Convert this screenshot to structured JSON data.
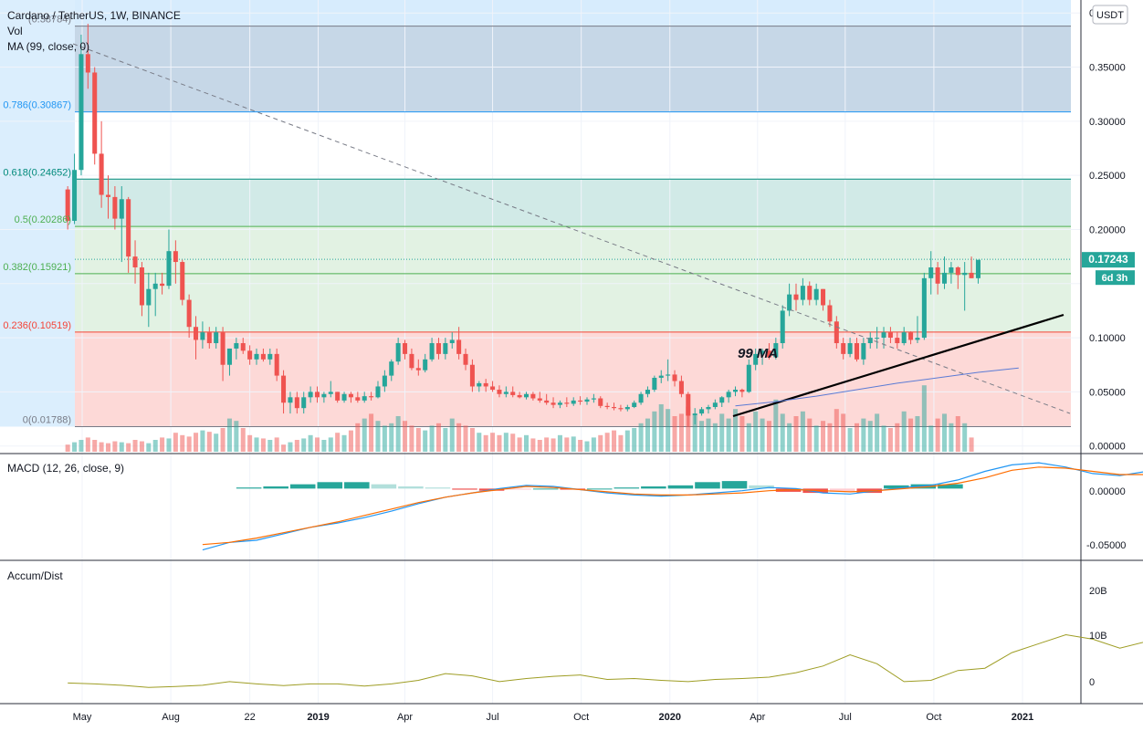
{
  "header": {
    "symbol_title": "Cardano / TetherUS, 1W, BINANCE",
    "vol_label": "Vol",
    "ma_label": "MA (99, close, 0)",
    "currency_button": "USDT"
  },
  "price_axis": {
    "ticks": [
      "0.40000",
      "0.35000",
      "0.30000",
      "0.25000",
      "0.20000",
      "0.15000",
      "0.10000",
      "0.05000",
      "0.00000"
    ],
    "last_price": "0.17243",
    "countdown": "6d 3h"
  },
  "fib_levels": [
    {
      "label": "(0.38784)",
      "value": 0.38784,
      "color": "#787b86"
    },
    {
      "label": "0.786(0.30867)",
      "value": 0.30867,
      "color": "#2196f3"
    },
    {
      "label": "0.618(0.24652)",
      "value": 0.24652,
      "color": "#00897b"
    },
    {
      "label": "0.5(0.20286)",
      "value": 0.20286,
      "color": "#4caf50"
    },
    {
      "label": "0.382(0.15921)",
      "value": 0.15921,
      "color": "#4caf50"
    },
    {
      "label": "0.236(0.10519)",
      "value": 0.10519,
      "color": "#f44336"
    },
    {
      "label": "0(0.01788)",
      "value": 0.01788,
      "color": "#787b86"
    }
  ],
  "annotation": {
    "ma_text": "99 MA"
  },
  "macd": {
    "title": "MACD (12, 26, close, 9)",
    "ticks": [
      "0.00000",
      "-0.05000"
    ]
  },
  "accum": {
    "title": "Accum/Dist",
    "ticks": [
      "20B",
      "10B",
      "0"
    ]
  },
  "time_axis": {
    "labels": [
      "May",
      "Aug",
      "22",
      "2019",
      "Apr",
      "Jul",
      "Oct",
      "2020",
      "Apr",
      "Jul",
      "Oct",
      "2021"
    ]
  },
  "colors": {
    "up": "#26a69a",
    "down": "#ef5350",
    "macd": "#2196f3",
    "signal": "#ff6d00",
    "ad": "#9e9d24"
  },
  "chart_data": [
    {
      "type": "candlestick",
      "title": "Cardano / TetherUS, 1W, BINANCE",
      "ylim": [
        -0.007,
        0.412
      ],
      "x_start": "2018-04-16",
      "x_step_weeks": 1,
      "ohlc": [
        [
          0.237,
          0.24,
          0.2,
          0.208
        ],
        [
          0.208,
          0.27,
          0.205,
          0.255
        ],
        [
          0.255,
          0.38,
          0.25,
          0.362
        ],
        [
          0.362,
          0.39,
          0.33,
          0.345
        ],
        [
          0.345,
          0.35,
          0.26,
          0.27
        ],
        [
          0.27,
          0.3,
          0.22,
          0.232
        ],
        [
          0.232,
          0.25,
          0.21,
          0.23
        ],
        [
          0.23,
          0.24,
          0.2,
          0.21
        ],
        [
          0.21,
          0.24,
          0.17,
          0.228
        ],
        [
          0.228,
          0.23,
          0.16,
          0.175
        ],
        [
          0.175,
          0.19,
          0.15,
          0.165
        ],
        [
          0.165,
          0.17,
          0.12,
          0.13
        ],
        [
          0.13,
          0.16,
          0.11,
          0.145
        ],
        [
          0.145,
          0.16,
          0.12,
          0.15
        ],
        [
          0.15,
          0.16,
          0.14,
          0.148
        ],
        [
          0.148,
          0.2,
          0.145,
          0.18
        ],
        [
          0.18,
          0.19,
          0.15,
          0.17
        ],
        [
          0.17,
          0.172,
          0.13,
          0.135
        ],
        [
          0.135,
          0.14,
          0.1,
          0.11
        ],
        [
          0.11,
          0.12,
          0.08,
          0.098
        ],
        [
          0.098,
          0.115,
          0.09,
          0.105
        ],
        [
          0.105,
          0.11,
          0.09,
          0.095
        ],
        [
          0.095,
          0.11,
          0.09,
          0.105
        ],
        [
          0.105,
          0.11,
          0.06,
          0.075
        ],
        [
          0.075,
          0.09,
          0.065,
          0.09
        ],
        [
          0.09,
          0.1,
          0.08,
          0.095
        ],
        [
          0.095,
          0.1,
          0.085,
          0.088
        ],
        [
          0.088,
          0.093,
          0.075,
          0.08
        ],
        [
          0.08,
          0.09,
          0.075,
          0.085
        ],
        [
          0.085,
          0.09,
          0.078,
          0.08
        ],
        [
          0.08,
          0.09,
          0.075,
          0.085
        ],
        [
          0.085,
          0.09,
          0.06,
          0.065
        ],
        [
          0.065,
          0.07,
          0.03,
          0.04
        ],
        [
          0.04,
          0.05,
          0.03,
          0.045
        ],
        [
          0.045,
          0.05,
          0.03,
          0.035
        ],
        [
          0.035,
          0.05,
          0.03,
          0.045
        ],
        [
          0.045,
          0.055,
          0.04,
          0.05
        ],
        [
          0.05,
          0.055,
          0.04,
          0.045
        ],
        [
          0.045,
          0.05,
          0.04,
          0.048
        ],
        [
          0.048,
          0.06,
          0.045,
          0.05
        ],
        [
          0.05,
          0.05,
          0.04,
          0.042
        ],
        [
          0.042,
          0.05,
          0.04,
          0.048
        ],
        [
          0.048,
          0.05,
          0.04,
          0.045
        ],
        [
          0.045,
          0.05,
          0.04,
          0.042
        ],
        [
          0.042,
          0.05,
          0.04,
          0.046
        ],
        [
          0.046,
          0.05,
          0.042,
          0.045
        ],
        [
          0.045,
          0.06,
          0.044,
          0.055
        ],
        [
          0.055,
          0.07,
          0.05,
          0.065
        ],
        [
          0.065,
          0.08,
          0.06,
          0.078
        ],
        [
          0.078,
          0.1,
          0.075,
          0.095
        ],
        [
          0.095,
          0.098,
          0.08,
          0.085
        ],
        [
          0.085,
          0.09,
          0.07,
          0.072
        ],
        [
          0.072,
          0.08,
          0.065,
          0.07
        ],
        [
          0.07,
          0.085,
          0.068,
          0.08
        ],
        [
          0.08,
          0.1,
          0.078,
          0.095
        ],
        [
          0.095,
          0.1,
          0.08,
          0.085
        ],
        [
          0.085,
          0.1,
          0.08,
          0.095
        ],
        [
          0.095,
          0.105,
          0.09,
          0.098
        ],
        [
          0.098,
          0.11,
          0.08,
          0.085
        ],
        [
          0.085,
          0.09,
          0.07,
          0.075
        ],
        [
          0.075,
          0.08,
          0.05,
          0.055
        ],
        [
          0.055,
          0.06,
          0.05,
          0.058
        ],
        [
          0.058,
          0.062,
          0.05,
          0.055
        ],
        [
          0.055,
          0.06,
          0.05,
          0.052
        ],
        [
          0.052,
          0.056,
          0.045,
          0.048
        ],
        [
          0.048,
          0.055,
          0.045,
          0.05
        ],
        [
          0.05,
          0.055,
          0.045,
          0.047
        ],
        [
          0.047,
          0.05,
          0.044,
          0.045
        ],
        [
          0.045,
          0.05,
          0.043,
          0.048
        ],
        [
          0.048,
          0.05,
          0.042,
          0.044
        ],
        [
          0.044,
          0.05,
          0.04,
          0.042
        ],
        [
          0.042,
          0.048,
          0.038,
          0.04
        ],
        [
          0.04,
          0.045,
          0.035,
          0.038
        ],
        [
          0.038,
          0.042,
          0.035,
          0.04
        ],
        [
          0.04,
          0.045,
          0.036,
          0.039
        ],
        [
          0.039,
          0.045,
          0.037,
          0.042
        ],
        [
          0.042,
          0.046,
          0.038,
          0.041
        ],
        [
          0.041,
          0.045,
          0.038,
          0.043
        ],
        [
          0.043,
          0.048,
          0.04,
          0.044
        ],
        [
          0.044,
          0.046,
          0.035,
          0.037
        ],
        [
          0.037,
          0.04,
          0.034,
          0.036
        ],
        [
          0.036,
          0.04,
          0.033,
          0.035
        ],
        [
          0.035,
          0.038,
          0.032,
          0.034
        ],
        [
          0.034,
          0.038,
          0.032,
          0.036
        ],
        [
          0.036,
          0.042,
          0.035,
          0.04
        ],
        [
          0.04,
          0.05,
          0.038,
          0.048
        ],
        [
          0.048,
          0.055,
          0.045,
          0.052
        ],
        [
          0.052,
          0.065,
          0.05,
          0.063
        ],
        [
          0.063,
          0.07,
          0.058,
          0.065
        ],
        [
          0.065,
          0.08,
          0.06,
          0.066
        ],
        [
          0.066,
          0.07,
          0.055,
          0.06
        ],
        [
          0.06,
          0.065,
          0.045,
          0.048
        ],
        [
          0.048,
          0.05,
          0.018,
          0.028
        ],
        [
          0.028,
          0.035,
          0.02,
          0.03
        ],
        [
          0.03,
          0.036,
          0.028,
          0.034
        ],
        [
          0.034,
          0.038,
          0.03,
          0.036
        ],
        [
          0.036,
          0.043,
          0.034,
          0.04
        ],
        [
          0.04,
          0.046,
          0.036,
          0.045
        ],
        [
          0.045,
          0.052,
          0.04,
          0.05
        ],
        [
          0.05,
          0.055,
          0.046,
          0.052
        ],
        [
          0.052,
          0.053,
          0.045,
          0.05
        ],
        [
          0.05,
          0.08,
          0.049,
          0.075
        ],
        [
          0.075,
          0.09,
          0.07,
          0.085
        ],
        [
          0.085,
          0.09,
          0.075,
          0.088
        ],
        [
          0.088,
          0.095,
          0.08,
          0.082
        ],
        [
          0.082,
          0.1,
          0.08,
          0.095
        ],
        [
          0.095,
          0.13,
          0.09,
          0.125
        ],
        [
          0.125,
          0.15,
          0.12,
          0.14
        ],
        [
          0.14,
          0.15,
          0.125,
          0.135
        ],
        [
          0.135,
          0.155,
          0.13,
          0.148
        ],
        [
          0.148,
          0.152,
          0.13,
          0.135
        ],
        [
          0.135,
          0.15,
          0.13,
          0.145
        ],
        [
          0.145,
          0.145,
          0.125,
          0.13
        ],
        [
          0.13,
          0.135,
          0.11,
          0.115
        ],
        [
          0.115,
          0.12,
          0.09,
          0.095
        ],
        [
          0.095,
          0.1,
          0.08,
          0.085
        ],
        [
          0.085,
          0.1,
          0.082,
          0.095
        ],
        [
          0.095,
          0.1,
          0.078,
          0.08
        ],
        [
          0.08,
          0.1,
          0.075,
          0.095
        ],
        [
          0.095,
          0.105,
          0.09,
          0.1
        ],
        [
          0.1,
          0.11,
          0.09,
          0.1
        ],
        [
          0.1,
          0.11,
          0.09,
          0.105
        ],
        [
          0.105,
          0.11,
          0.095,
          0.1
        ],
        [
          0.1,
          0.105,
          0.09,
          0.095
        ],
        [
          0.095,
          0.11,
          0.093,
          0.105
        ],
        [
          0.105,
          0.106,
          0.094,
          0.098
        ],
        [
          0.098,
          0.12,
          0.095,
          0.1
        ],
        [
          0.1,
          0.16,
          0.098,
          0.155
        ],
        [
          0.155,
          0.18,
          0.14,
          0.165
        ],
        [
          0.165,
          0.17,
          0.14,
          0.15
        ],
        [
          0.15,
          0.175,
          0.145,
          0.16
        ],
        [
          0.16,
          0.17,
          0.15,
          0.165
        ],
        [
          0.165,
          0.166,
          0.145,
          0.158
        ],
        [
          0.158,
          0.17,
          0.125,
          0.16
        ],
        [
          0.16,
          0.175,
          0.155,
          0.155
        ],
        [
          0.155,
          0.17,
          0.15,
          0.172
        ]
      ],
      "volume_relative": [
        0.15,
        0.2,
        0.25,
        0.3,
        0.25,
        0.2,
        0.18,
        0.22,
        0.2,
        0.18,
        0.25,
        0.22,
        0.18,
        0.25,
        0.3,
        0.28,
        0.4,
        0.35,
        0.32,
        0.4,
        0.45,
        0.42,
        0.38,
        0.5,
        0.7,
        0.65,
        0.5,
        0.35,
        0.3,
        0.28,
        0.25,
        0.3,
        0.15,
        0.2,
        0.25,
        0.28,
        0.35,
        0.3,
        0.25,
        0.3,
        0.4,
        0.35,
        0.45,
        0.6,
        0.7,
        0.8,
        0.65,
        0.55,
        0.6,
        0.75,
        0.65,
        0.55,
        0.5,
        0.45,
        0.55,
        0.6,
        0.5,
        0.7,
        0.6,
        0.55,
        0.5,
        0.4,
        0.35,
        0.4,
        0.35,
        0.4,
        0.38,
        0.3,
        0.35,
        0.28,
        0.25,
        0.3,
        0.28,
        0.35,
        0.3,
        0.32,
        0.25,
        0.22,
        0.3,
        0.35,
        0.4,
        0.45,
        0.35,
        0.45,
        0.5,
        0.6,
        0.7,
        0.85,
        1.0,
        0.9,
        0.75,
        0.8,
        0.95,
        0.75,
        0.65,
        0.7,
        0.6,
        0.8,
        0.7,
        0.9,
        0.75,
        0.6,
        0.85,
        0.7,
        0.65,
        1.1,
        0.8,
        0.6,
        0.75,
        0.85,
        0.7,
        0.55,
        0.65,
        0.6,
        0.9,
        0.8,
        0.5,
        0.6,
        0.7,
        0.65,
        0.8,
        0.55,
        0.5,
        0.6,
        0.85,
        0.7,
        0.75,
        1.4,
        0.55,
        0.7,
        0.8,
        0.6,
        0.75,
        0.6,
        0.3
      ],
      "ma99": [
        0.037,
        0.041,
        0.046,
        0.052,
        0.058,
        0.063,
        0.068,
        0.072
      ],
      "ma99_x_start": "2020-03-09",
      "ma99_x_step_weeks": 6
    },
    {
      "type": "line",
      "title": "MACD (12, 26, close, 9)",
      "ylim": [
        -0.065,
        0.03
      ],
      "x_start": "2018-09-03",
      "x_step_weeks": 4,
      "series": [
        {
          "values": [
            -0.057,
            -0.05,
            -0.048,
            -0.042,
            -0.036,
            -0.032,
            -0.027,
            -0.021,
            -0.014,
            -0.008,
            -0.004,
            0.0,
            0.003,
            0.002,
            -0.001,
            -0.004,
            -0.006,
            -0.007,
            -0.006,
            -0.004,
            -0.002,
            0.001,
            0.0,
            -0.004,
            -0.005,
            -0.002,
            0.001,
            0.003,
            0.008,
            0.016,
            0.022,
            0.024,
            0.02,
            0.014,
            0.012,
            0.016,
            0.019,
            0.021
          ]
        },
        {
          "values": [
            -0.052,
            -0.05,
            -0.046,
            -0.041,
            -0.036,
            -0.031,
            -0.025,
            -0.019,
            -0.013,
            -0.008,
            -0.004,
            -0.001,
            0.002,
            0.001,
            -0.001,
            -0.003,
            -0.005,
            -0.006,
            -0.006,
            -0.005,
            -0.004,
            -0.002,
            -0.001,
            -0.002,
            -0.003,
            -0.002,
            0.0,
            0.002,
            0.005,
            0.01,
            0.017,
            0.02,
            0.019,
            0.016,
            0.013,
            0.013,
            0.015,
            0.017
          ]
        }
      ],
      "histogram": [
        0.001,
        0.002,
        0.004,
        0.006,
        0.006,
        0.004,
        0.002,
        0.001,
        -0.001,
        -0.002,
        -0.001,
        0.0,
        -0.001,
        0.0,
        0.001,
        0.002,
        0.003,
        0.006,
        0.007,
        0.003,
        -0.003,
        -0.004,
        -0.003,
        -0.004,
        0.003,
        0.004,
        0.004
      ],
      "histogram_x_start": "2018-10-08",
      "histogram_x_step_weeks": 4
    },
    {
      "type": "line",
      "title": "Accum/Dist",
      "ylim": [
        -4,
        27
      ],
      "x_start": "2018-04-16",
      "x_step_weeks": 4,
      "series": [
        {
          "values": [
            0.2,
            0.0,
            -0.3,
            -0.8,
            -0.6,
            -0.3,
            0.5,
            0.0,
            -0.4,
            0.0,
            0.0,
            -0.5,
            0.0,
            0.8,
            2.3,
            1.8,
            0.5,
            1.2,
            1.7,
            2.0,
            1.0,
            1.2,
            0.8,
            0.5,
            1.0,
            1.2,
            1.5,
            2.5,
            4.0,
            6.5,
            4.5,
            0.5,
            0.8,
            3.0,
            3.5,
            7.0,
            9.0,
            11.0,
            10.0,
            8.0,
            9.5,
            11.0,
            11.5,
            19.0,
            21.0,
            23.0
          ]
        }
      ]
    }
  ]
}
